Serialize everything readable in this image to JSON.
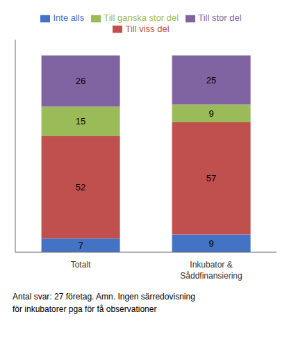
{
  "chart_data": {
    "type": "bar",
    "categories": [
      "Totalt",
      "Inkubator &\nSåddfinansiering"
    ],
    "series": [
      {
        "name": "Inte alls",
        "color": "#4472c4",
        "values": [
          7,
          9
        ]
      },
      {
        "name": "Till viss del",
        "color": "#c0504d",
        "values": [
          52,
          57
        ]
      },
      {
        "name": "Till ganska stor del",
        "color": "#9bbb59",
        "values": [
          15,
          9
        ]
      },
      {
        "name": "Till stor del",
        "color": "#8064a2",
        "values": [
          26,
          25
        ]
      }
    ],
    "ylim": [
      0,
      108
    ],
    "stacked": true,
    "data_labels": true,
    "tick_labels": "x",
    "grid": false,
    "legend": "top",
    "annotations": [
      "Antal svar: 27 företag. Amn. Ingen särredovisning\nför inkubatorer pga för få observationer"
    ]
  }
}
